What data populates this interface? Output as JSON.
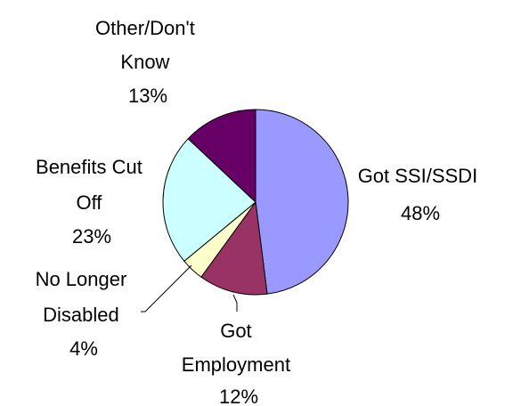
{
  "chart_data": {
    "type": "pie",
    "title": "",
    "slices": [
      {
        "label_lines": [
          "Got SSI/SSDI"
        ],
        "value": 48,
        "value_text": "48%",
        "color": "#9999ff"
      },
      {
        "label_lines": [
          "Got",
          "Employment"
        ],
        "value": 12,
        "value_text": "12%",
        "color": "#993366"
      },
      {
        "label_lines": [
          "No Longer",
          "Disabled"
        ],
        "value": 4,
        "value_text": "4%",
        "color": "#ffffcc"
      },
      {
        "label_lines": [
          "Benefits Cut",
          "Off"
        ],
        "value": 23,
        "value_text": "23%",
        "color": "#ccffff"
      },
      {
        "label_lines": [
          "Other/Don't",
          "Know"
        ],
        "value": 13,
        "value_text": "13%",
        "color": "#660066"
      }
    ]
  }
}
